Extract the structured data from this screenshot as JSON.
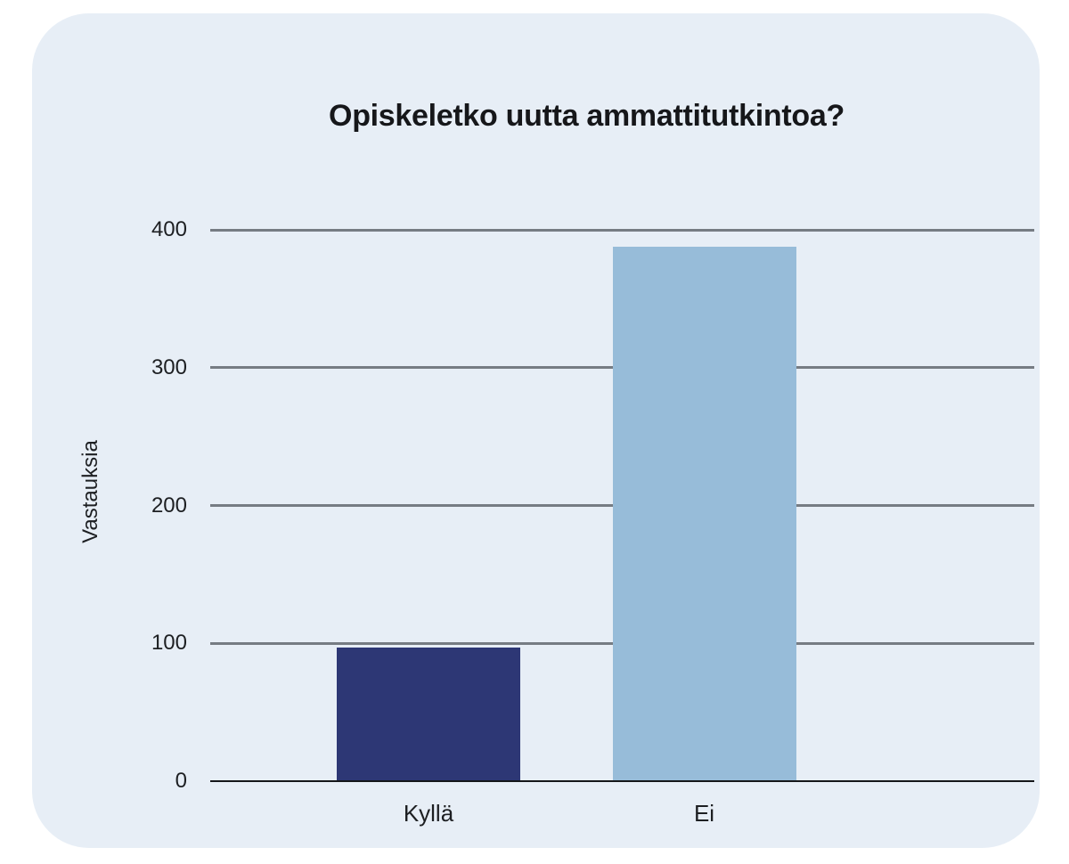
{
  "page": {
    "background": "#ffffff",
    "panel_background": "#e7eef6"
  },
  "chart_data": {
    "type": "bar",
    "title": "Opiskeletko uutta ammattitutkintoa?",
    "xlabel": "",
    "ylabel": "Vastauksia",
    "categories": [
      "Kyllä",
      "Ei"
    ],
    "values": [
      97,
      388
    ],
    "bar_colors": [
      "#2d3775",
      "#97bcd9"
    ],
    "yticks": [
      0,
      100,
      200,
      300,
      400
    ],
    "ylim": [
      0,
      400
    ],
    "grid": true,
    "legend": "none",
    "gridline_color": "#767c83",
    "axis_color": "#15171a",
    "text_color": "#1d1f22"
  }
}
